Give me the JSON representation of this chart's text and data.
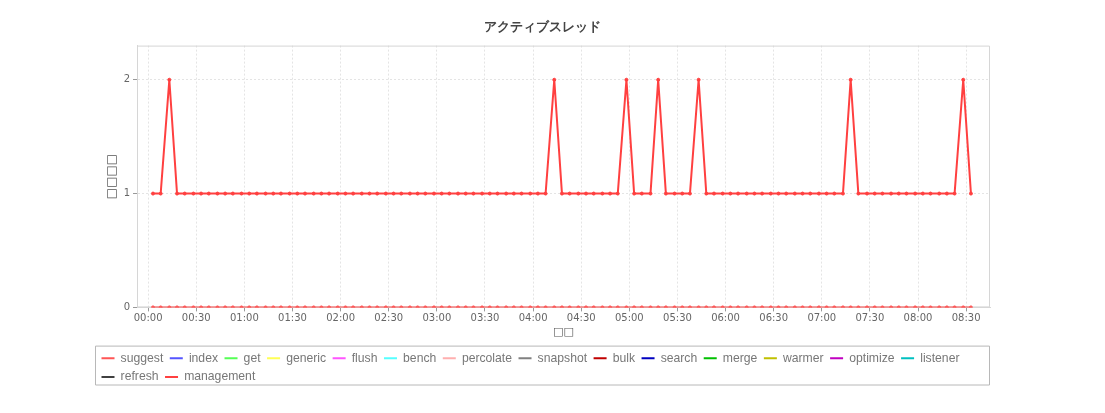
{
  "chart_data": {
    "type": "line",
    "title": "アクティブスレッド",
    "xlabel": "□□",
    "ylabel": "□□□□",
    "x": [
      0.05,
      0.13,
      0.22,
      0.3,
      0.38,
      0.47,
      0.55,
      0.63,
      0.72,
      0.8,
      0.88,
      0.97,
      1.05,
      1.13,
      1.22,
      1.3,
      1.38,
      1.47,
      1.55,
      1.63,
      1.72,
      1.8,
      1.88,
      1.97,
      2.05,
      2.13,
      2.22,
      2.3,
      2.38,
      2.47,
      2.55,
      2.63,
      2.72,
      2.8,
      2.88,
      2.97,
      3.05,
      3.13,
      3.22,
      3.3,
      3.38,
      3.47,
      3.55,
      3.63,
      3.72,
      3.8,
      3.88,
      3.97,
      4.05,
      4.13,
      4.22,
      4.3,
      4.38,
      4.47,
      4.55,
      4.63,
      4.72,
      4.8,
      4.88,
      4.97,
      5.05,
      5.13,
      5.22,
      5.3,
      5.38,
      5.47,
      5.55,
      5.63,
      5.72,
      5.8,
      5.88,
      5.97,
      6.05,
      6.13,
      6.22,
      6.3,
      6.38,
      6.47,
      6.55,
      6.63,
      6.72,
      6.8,
      6.88,
      6.97,
      7.05,
      7.13,
      7.22,
      7.3,
      7.38,
      7.47,
      7.55,
      7.63,
      7.72,
      7.8,
      7.88,
      7.97,
      8.05,
      8.13,
      8.22,
      8.3,
      8.38,
      8.47,
      8.55
    ],
    "xlim": [
      -0.116,
      8.748
    ],
    "xticks": [
      {
        "value": 0,
        "label": "00:00"
      },
      {
        "value": 0.5,
        "label": "00:30"
      },
      {
        "value": 1,
        "label": "01:00"
      },
      {
        "value": 1.5,
        "label": "01:30"
      },
      {
        "value": 2,
        "label": "02:00"
      },
      {
        "value": 2.5,
        "label": "02:30"
      },
      {
        "value": 3,
        "label": "03:00"
      },
      {
        "value": 3.5,
        "label": "03:30"
      },
      {
        "value": 4,
        "label": "04:00"
      },
      {
        "value": 4.5,
        "label": "04:30"
      },
      {
        "value": 5,
        "label": "05:00"
      },
      {
        "value": 5.5,
        "label": "05:30"
      },
      {
        "value": 6,
        "label": "06:00"
      },
      {
        "value": 6.5,
        "label": "06:30"
      },
      {
        "value": 7,
        "label": "07:00"
      },
      {
        "value": 7.5,
        "label": "07:30"
      },
      {
        "value": 8,
        "label": "08:00"
      },
      {
        "value": 8.5,
        "label": "08:30"
      }
    ],
    "ylim": [
      0,
      2.3
    ],
    "yticks": [
      0,
      1,
      2
    ],
    "grid": true,
    "legend": "bottom",
    "marker": "circle",
    "line_style": "solid",
    "series": [
      {
        "name": "suggest",
        "color": "#ff5555",
        "values": [
          0,
          0,
          0,
          0,
          0,
          0,
          0,
          0,
          0,
          0,
          0,
          0,
          0,
          0,
          0,
          0,
          0,
          0,
          0,
          0,
          0,
          0,
          0,
          0,
          0,
          0,
          0,
          0,
          0,
          0,
          0,
          0,
          0,
          0,
          0,
          0,
          0,
          0,
          0,
          0,
          0,
          0,
          0,
          0,
          0,
          0,
          0,
          0,
          0,
          0,
          0,
          0,
          0,
          0,
          0,
          0,
          0,
          0,
          0,
          0,
          0,
          0,
          0,
          0,
          0,
          0,
          0,
          0,
          0,
          0,
          0,
          0,
          0,
          0,
          0,
          0,
          0,
          0,
          0,
          0,
          0,
          0,
          0,
          0,
          0,
          0,
          0,
          0,
          0,
          0,
          0,
          0,
          0,
          0,
          0,
          0,
          0,
          0,
          0,
          0,
          0,
          0,
          0
        ]
      },
      {
        "name": "index",
        "color": "#5555ff",
        "values": [
          null,
          null,
          null,
          null,
          null,
          null,
          null,
          null,
          null,
          null,
          null,
          null,
          null,
          null,
          null,
          null,
          null,
          null,
          null,
          null,
          null,
          null,
          null,
          null,
          null,
          null,
          null,
          null,
          null,
          null,
          null,
          null,
          null,
          null,
          null,
          null,
          null,
          null,
          null,
          null,
          null,
          null,
          null,
          null,
          null,
          null,
          null,
          null,
          null,
          null,
          null,
          null,
          null,
          null,
          null,
          null,
          null,
          null,
          null,
          null,
          null,
          null,
          null,
          null,
          null,
          null,
          null,
          null,
          null,
          null,
          null,
          null,
          null,
          null,
          null,
          null,
          null,
          null,
          null,
          null,
          null,
          null,
          null,
          null,
          null,
          null,
          null,
          null,
          null,
          null,
          null,
          null,
          null,
          null,
          null,
          null,
          null,
          null,
          null,
          null,
          null,
          null,
          null
        ]
      },
      {
        "name": "get",
        "color": "#55ff55",
        "values": [
          null,
          null,
          null,
          null,
          null,
          null,
          null,
          null,
          null,
          null,
          null,
          null,
          null,
          null,
          null,
          null,
          null,
          null,
          null,
          null,
          null,
          null,
          null,
          null,
          null,
          null,
          null,
          null,
          null,
          null,
          null,
          null,
          null,
          null,
          null,
          null,
          null,
          null,
          null,
          null,
          null,
          null,
          null,
          null,
          null,
          null,
          null,
          null,
          null,
          null,
          null,
          null,
          null,
          null,
          null,
          null,
          null,
          null,
          null,
          null,
          null,
          null,
          null,
          null,
          null,
          null,
          null,
          null,
          null,
          null,
          null,
          null,
          null,
          null,
          null,
          null,
          null,
          null,
          null,
          null,
          null,
          null,
          null,
          null,
          null,
          null,
          null,
          null,
          null,
          null,
          null,
          null,
          null,
          null,
          null,
          null,
          null,
          null,
          null,
          null,
          null,
          null,
          null
        ]
      },
      {
        "name": "generic",
        "color": "#ffff55",
        "values": [
          null,
          null,
          null,
          null,
          null,
          null,
          null,
          null,
          null,
          null,
          null,
          null,
          null,
          null,
          null,
          null,
          null,
          null,
          null,
          null,
          null,
          null,
          null,
          null,
          null,
          null,
          null,
          null,
          null,
          null,
          null,
          null,
          null,
          null,
          null,
          null,
          null,
          null,
          null,
          null,
          null,
          null,
          null,
          null,
          null,
          null,
          null,
          null,
          null,
          null,
          null,
          null,
          null,
          null,
          null,
          null,
          null,
          null,
          null,
          null,
          null,
          null,
          null,
          null,
          null,
          null,
          null,
          null,
          null,
          null,
          null,
          null,
          null,
          null,
          null,
          null,
          null,
          null,
          null,
          null,
          null,
          null,
          null,
          null,
          null,
          null,
          null,
          null,
          null,
          null,
          null,
          null,
          null,
          null,
          null,
          null,
          null,
          null,
          null,
          null,
          null,
          null,
          null
        ]
      },
      {
        "name": "flush",
        "color": "#ff55ff",
        "values": [
          null,
          null,
          null,
          null,
          null,
          null,
          null,
          null,
          null,
          null,
          null,
          null,
          null,
          null,
          null,
          null,
          null,
          null,
          null,
          null,
          null,
          null,
          null,
          null,
          null,
          null,
          null,
          null,
          null,
          null,
          null,
          null,
          null,
          null,
          null,
          null,
          null,
          null,
          null,
          null,
          null,
          null,
          null,
          null,
          null,
          null,
          null,
          null,
          null,
          null,
          null,
          null,
          null,
          null,
          null,
          null,
          null,
          null,
          null,
          null,
          null,
          null,
          null,
          null,
          null,
          null,
          null,
          null,
          null,
          null,
          null,
          null,
          null,
          null,
          null,
          null,
          null,
          null,
          null,
          null,
          null,
          null,
          null,
          null,
          null,
          null,
          null,
          null,
          null,
          null,
          null,
          null,
          null,
          null,
          null,
          null,
          null,
          null,
          null,
          null,
          null,
          null,
          null
        ]
      },
      {
        "name": "bench",
        "color": "#55ffff",
        "values": [
          null,
          null,
          null,
          null,
          null,
          null,
          null,
          null,
          null,
          null,
          null,
          null,
          null,
          null,
          null,
          null,
          null,
          null,
          null,
          null,
          null,
          null,
          null,
          null,
          null,
          null,
          null,
          null,
          null,
          null,
          null,
          null,
          null,
          null,
          null,
          null,
          null,
          null,
          null,
          null,
          null,
          null,
          null,
          null,
          null,
          null,
          null,
          null,
          null,
          null,
          null,
          null,
          null,
          null,
          null,
          null,
          null,
          null,
          null,
          null,
          null,
          null,
          null,
          null,
          null,
          null,
          null,
          null,
          null,
          null,
          null,
          null,
          null,
          null,
          null,
          null,
          null,
          null,
          null,
          null,
          null,
          null,
          null,
          null,
          null,
          null,
          null,
          null,
          null,
          null,
          null,
          null,
          null,
          null,
          null,
          null,
          null,
          null,
          null,
          null,
          null,
          null,
          null
        ]
      },
      {
        "name": "percolate",
        "color": "#ffafaf",
        "values": [
          null,
          null,
          null,
          null,
          null,
          null,
          null,
          null,
          null,
          null,
          null,
          null,
          null,
          null,
          null,
          null,
          null,
          null,
          null,
          null,
          null,
          null,
          null,
          null,
          null,
          null,
          null,
          null,
          null,
          null,
          null,
          null,
          null,
          null,
          null,
          null,
          null,
          null,
          null,
          null,
          null,
          null,
          null,
          null,
          null,
          null,
          null,
          null,
          null,
          null,
          null,
          null,
          null,
          null,
          null,
          null,
          null,
          null,
          null,
          null,
          null,
          null,
          null,
          null,
          null,
          null,
          null,
          null,
          null,
          null,
          null,
          null,
          null,
          null,
          null,
          null,
          null,
          null,
          null,
          null,
          null,
          null,
          null,
          null,
          null,
          null,
          null,
          null,
          null,
          null,
          null,
          null,
          null,
          null,
          null,
          null,
          null,
          null,
          null,
          null,
          null,
          null,
          null
        ]
      },
      {
        "name": "snapshot",
        "color": "#808080",
        "values": [
          null,
          null,
          null,
          null,
          null,
          null,
          null,
          null,
          null,
          null,
          null,
          null,
          null,
          null,
          null,
          null,
          null,
          null,
          null,
          null,
          null,
          null,
          null,
          null,
          null,
          null,
          null,
          null,
          null,
          null,
          null,
          null,
          null,
          null,
          null,
          null,
          null,
          null,
          null,
          null,
          null,
          null,
          null,
          null,
          null,
          null,
          null,
          null,
          null,
          null,
          null,
          null,
          null,
          null,
          null,
          null,
          null,
          null,
          null,
          null,
          null,
          null,
          null,
          null,
          null,
          null,
          null,
          null,
          null,
          null,
          null,
          null,
          null,
          null,
          null,
          null,
          null,
          null,
          null,
          null,
          null,
          null,
          null,
          null,
          null,
          null,
          null,
          null,
          null,
          null,
          null,
          null,
          null,
          null,
          null,
          null,
          null,
          null,
          null,
          null,
          null,
          null,
          null
        ]
      },
      {
        "name": "bulk",
        "color": "#c00000",
        "values": [
          null,
          null,
          null,
          null,
          null,
          null,
          null,
          null,
          null,
          null,
          null,
          null,
          null,
          null,
          null,
          null,
          null,
          null,
          null,
          null,
          null,
          null,
          null,
          null,
          null,
          null,
          null,
          null,
          null,
          null,
          null,
          null,
          null,
          null,
          null,
          null,
          null,
          null,
          null,
          null,
          null,
          null,
          null,
          null,
          null,
          null,
          null,
          null,
          null,
          null,
          null,
          null,
          null,
          null,
          null,
          null,
          null,
          null,
          null,
          null,
          null,
          null,
          null,
          null,
          null,
          null,
          null,
          null,
          null,
          null,
          null,
          null,
          null,
          null,
          null,
          null,
          null,
          null,
          null,
          null,
          null,
          null,
          null,
          null,
          null,
          null,
          null,
          null,
          null,
          null,
          null,
          null,
          null,
          null,
          null,
          null,
          null,
          null,
          null,
          null,
          null,
          null,
          null
        ]
      },
      {
        "name": "search",
        "color": "#0000c0",
        "values": [
          null,
          null,
          null,
          null,
          null,
          null,
          null,
          null,
          null,
          null,
          null,
          null,
          null,
          null,
          null,
          null,
          null,
          null,
          null,
          null,
          null,
          null,
          null,
          null,
          null,
          null,
          null,
          null,
          null,
          null,
          null,
          null,
          null,
          null,
          null,
          null,
          null,
          null,
          null,
          null,
          null,
          null,
          null,
          null,
          null,
          null,
          null,
          null,
          null,
          null,
          null,
          null,
          null,
          null,
          null,
          null,
          null,
          null,
          null,
          null,
          null,
          null,
          null,
          null,
          null,
          null,
          null,
          null,
          null,
          null,
          null,
          null,
          null,
          null,
          null,
          null,
          null,
          null,
          null,
          null,
          null,
          null,
          null,
          null,
          null,
          null,
          null,
          null,
          null,
          null,
          null,
          null,
          null,
          null,
          null,
          null,
          null,
          null,
          null,
          null,
          null,
          null,
          null
        ]
      },
      {
        "name": "merge",
        "color": "#00c000",
        "values": [
          null,
          null,
          null,
          null,
          null,
          null,
          null,
          null,
          null,
          null,
          null,
          null,
          null,
          null,
          null,
          null,
          null,
          null,
          null,
          null,
          null,
          null,
          null,
          null,
          null,
          null,
          null,
          null,
          null,
          null,
          null,
          null,
          null,
          null,
          null,
          null,
          null,
          null,
          null,
          null,
          null,
          null,
          null,
          null,
          null,
          null,
          null,
          null,
          null,
          null,
          null,
          null,
          null,
          null,
          null,
          null,
          null,
          null,
          null,
          null,
          null,
          null,
          null,
          null,
          null,
          null,
          null,
          null,
          null,
          null,
          null,
          null,
          null,
          null,
          null,
          null,
          null,
          null,
          null,
          null,
          null,
          null,
          null,
          null,
          null,
          null,
          null,
          null,
          null,
          null,
          null,
          null,
          null,
          null,
          null,
          null,
          null,
          null,
          null,
          null,
          null,
          null,
          null
        ]
      },
      {
        "name": "warmer",
        "color": "#c0c000",
        "values": [
          null,
          null,
          null,
          null,
          null,
          null,
          null,
          null,
          null,
          null,
          null,
          null,
          null,
          null,
          null,
          null,
          null,
          null,
          null,
          null,
          null,
          null,
          null,
          null,
          null,
          null,
          null,
          null,
          null,
          null,
          null,
          null,
          null,
          null,
          null,
          null,
          null,
          null,
          null,
          null,
          null,
          null,
          null,
          null,
          null,
          null,
          null,
          null,
          null,
          null,
          null,
          null,
          null,
          null,
          null,
          null,
          null,
          null,
          null,
          null,
          null,
          null,
          null,
          null,
          null,
          null,
          null,
          null,
          null,
          null,
          null,
          null,
          null,
          null,
          null,
          null,
          null,
          null,
          null,
          null,
          null,
          null,
          null,
          null,
          null,
          null,
          null,
          null,
          null,
          null,
          null,
          null,
          null,
          null,
          null,
          null,
          null,
          null,
          null,
          null,
          null,
          null,
          null
        ]
      },
      {
        "name": "optimize",
        "color": "#c000c0",
        "values": [
          null,
          null,
          null,
          null,
          null,
          null,
          null,
          null,
          null,
          null,
          null,
          null,
          null,
          null,
          null,
          null,
          null,
          null,
          null,
          null,
          null,
          null,
          null,
          null,
          null,
          null,
          null,
          null,
          null,
          null,
          null,
          null,
          null,
          null,
          null,
          null,
          null,
          null,
          null,
          null,
          null,
          null,
          null,
          null,
          null,
          null,
          null,
          null,
          null,
          null,
          null,
          null,
          null,
          null,
          null,
          null,
          null,
          null,
          null,
          null,
          null,
          null,
          null,
          null,
          null,
          null,
          null,
          null,
          null,
          null,
          null,
          null,
          null,
          null,
          null,
          null,
          null,
          null,
          null,
          null,
          null,
          null,
          null,
          null,
          null,
          null,
          null,
          null,
          null,
          null,
          null,
          null,
          null,
          null,
          null,
          null,
          null,
          null,
          null,
          null,
          null,
          null,
          null
        ]
      },
      {
        "name": "listener",
        "color": "#00c0c0",
        "values": [
          null,
          null,
          null,
          null,
          null,
          null,
          null,
          null,
          null,
          null,
          null,
          null,
          null,
          null,
          null,
          null,
          null,
          null,
          null,
          null,
          null,
          null,
          null,
          null,
          null,
          null,
          null,
          null,
          null,
          null,
          null,
          null,
          null,
          null,
          null,
          null,
          null,
          null,
          null,
          null,
          null,
          null,
          null,
          null,
          null,
          null,
          null,
          null,
          null,
          null,
          null,
          null,
          null,
          null,
          null,
          null,
          null,
          null,
          null,
          null,
          null,
          null,
          null,
          null,
          null,
          null,
          null,
          null,
          null,
          null,
          null,
          null,
          null,
          null,
          null,
          null,
          null,
          null,
          null,
          null,
          null,
          null,
          null,
          null,
          null,
          null,
          null,
          null,
          null,
          null,
          null,
          null,
          null,
          null,
          null,
          null,
          null,
          null,
          null,
          null,
          null,
          null,
          null
        ]
      },
      {
        "name": "refresh",
        "color": "#404040",
        "values": [
          null,
          null,
          null,
          null,
          null,
          null,
          null,
          null,
          null,
          null,
          null,
          null,
          null,
          null,
          null,
          null,
          null,
          null,
          null,
          null,
          null,
          null,
          null,
          null,
          null,
          null,
          null,
          null,
          null,
          null,
          null,
          null,
          null,
          null,
          null,
          null,
          null,
          null,
          null,
          null,
          null,
          null,
          null,
          null,
          null,
          null,
          null,
          null,
          null,
          null,
          null,
          null,
          null,
          null,
          null,
          null,
          null,
          null,
          null,
          null,
          null,
          null,
          null,
          null,
          null,
          null,
          null,
          null,
          null,
          null,
          null,
          null,
          null,
          null,
          null,
          null,
          null,
          null,
          null,
          null,
          null,
          null,
          null,
          null,
          null,
          null,
          null,
          null,
          null,
          null,
          null,
          null,
          null,
          null,
          null,
          null,
          null,
          null,
          null,
          null,
          null,
          null,
          null
        ]
      },
      {
        "name": "management",
        "color": "#ff4040",
        "values": [
          1,
          1,
          2,
          1,
          1,
          1,
          1,
          1,
          1,
          1,
          1,
          1,
          1,
          1,
          1,
          1,
          1,
          1,
          1,
          1,
          1,
          1,
          1,
          1,
          1,
          1,
          1,
          1,
          1,
          1,
          1,
          1,
          1,
          1,
          1,
          1,
          1,
          1,
          1,
          1,
          1,
          1,
          1,
          1,
          1,
          1,
          1,
          1,
          1,
          1,
          2,
          1,
          1,
          1,
          1,
          1,
          1,
          1,
          1,
          2,
          1,
          1,
          1,
          2,
          1,
          1,
          1,
          1,
          2,
          1,
          1,
          1,
          1,
          1,
          1,
          1,
          1,
          1,
          1,
          1,
          1,
          1,
          1,
          1,
          1,
          1,
          1,
          2,
          1,
          1,
          1,
          1,
          1,
          1,
          1,
          1,
          1,
          1,
          1,
          1,
          1,
          2,
          1
        ]
      }
    ]
  }
}
